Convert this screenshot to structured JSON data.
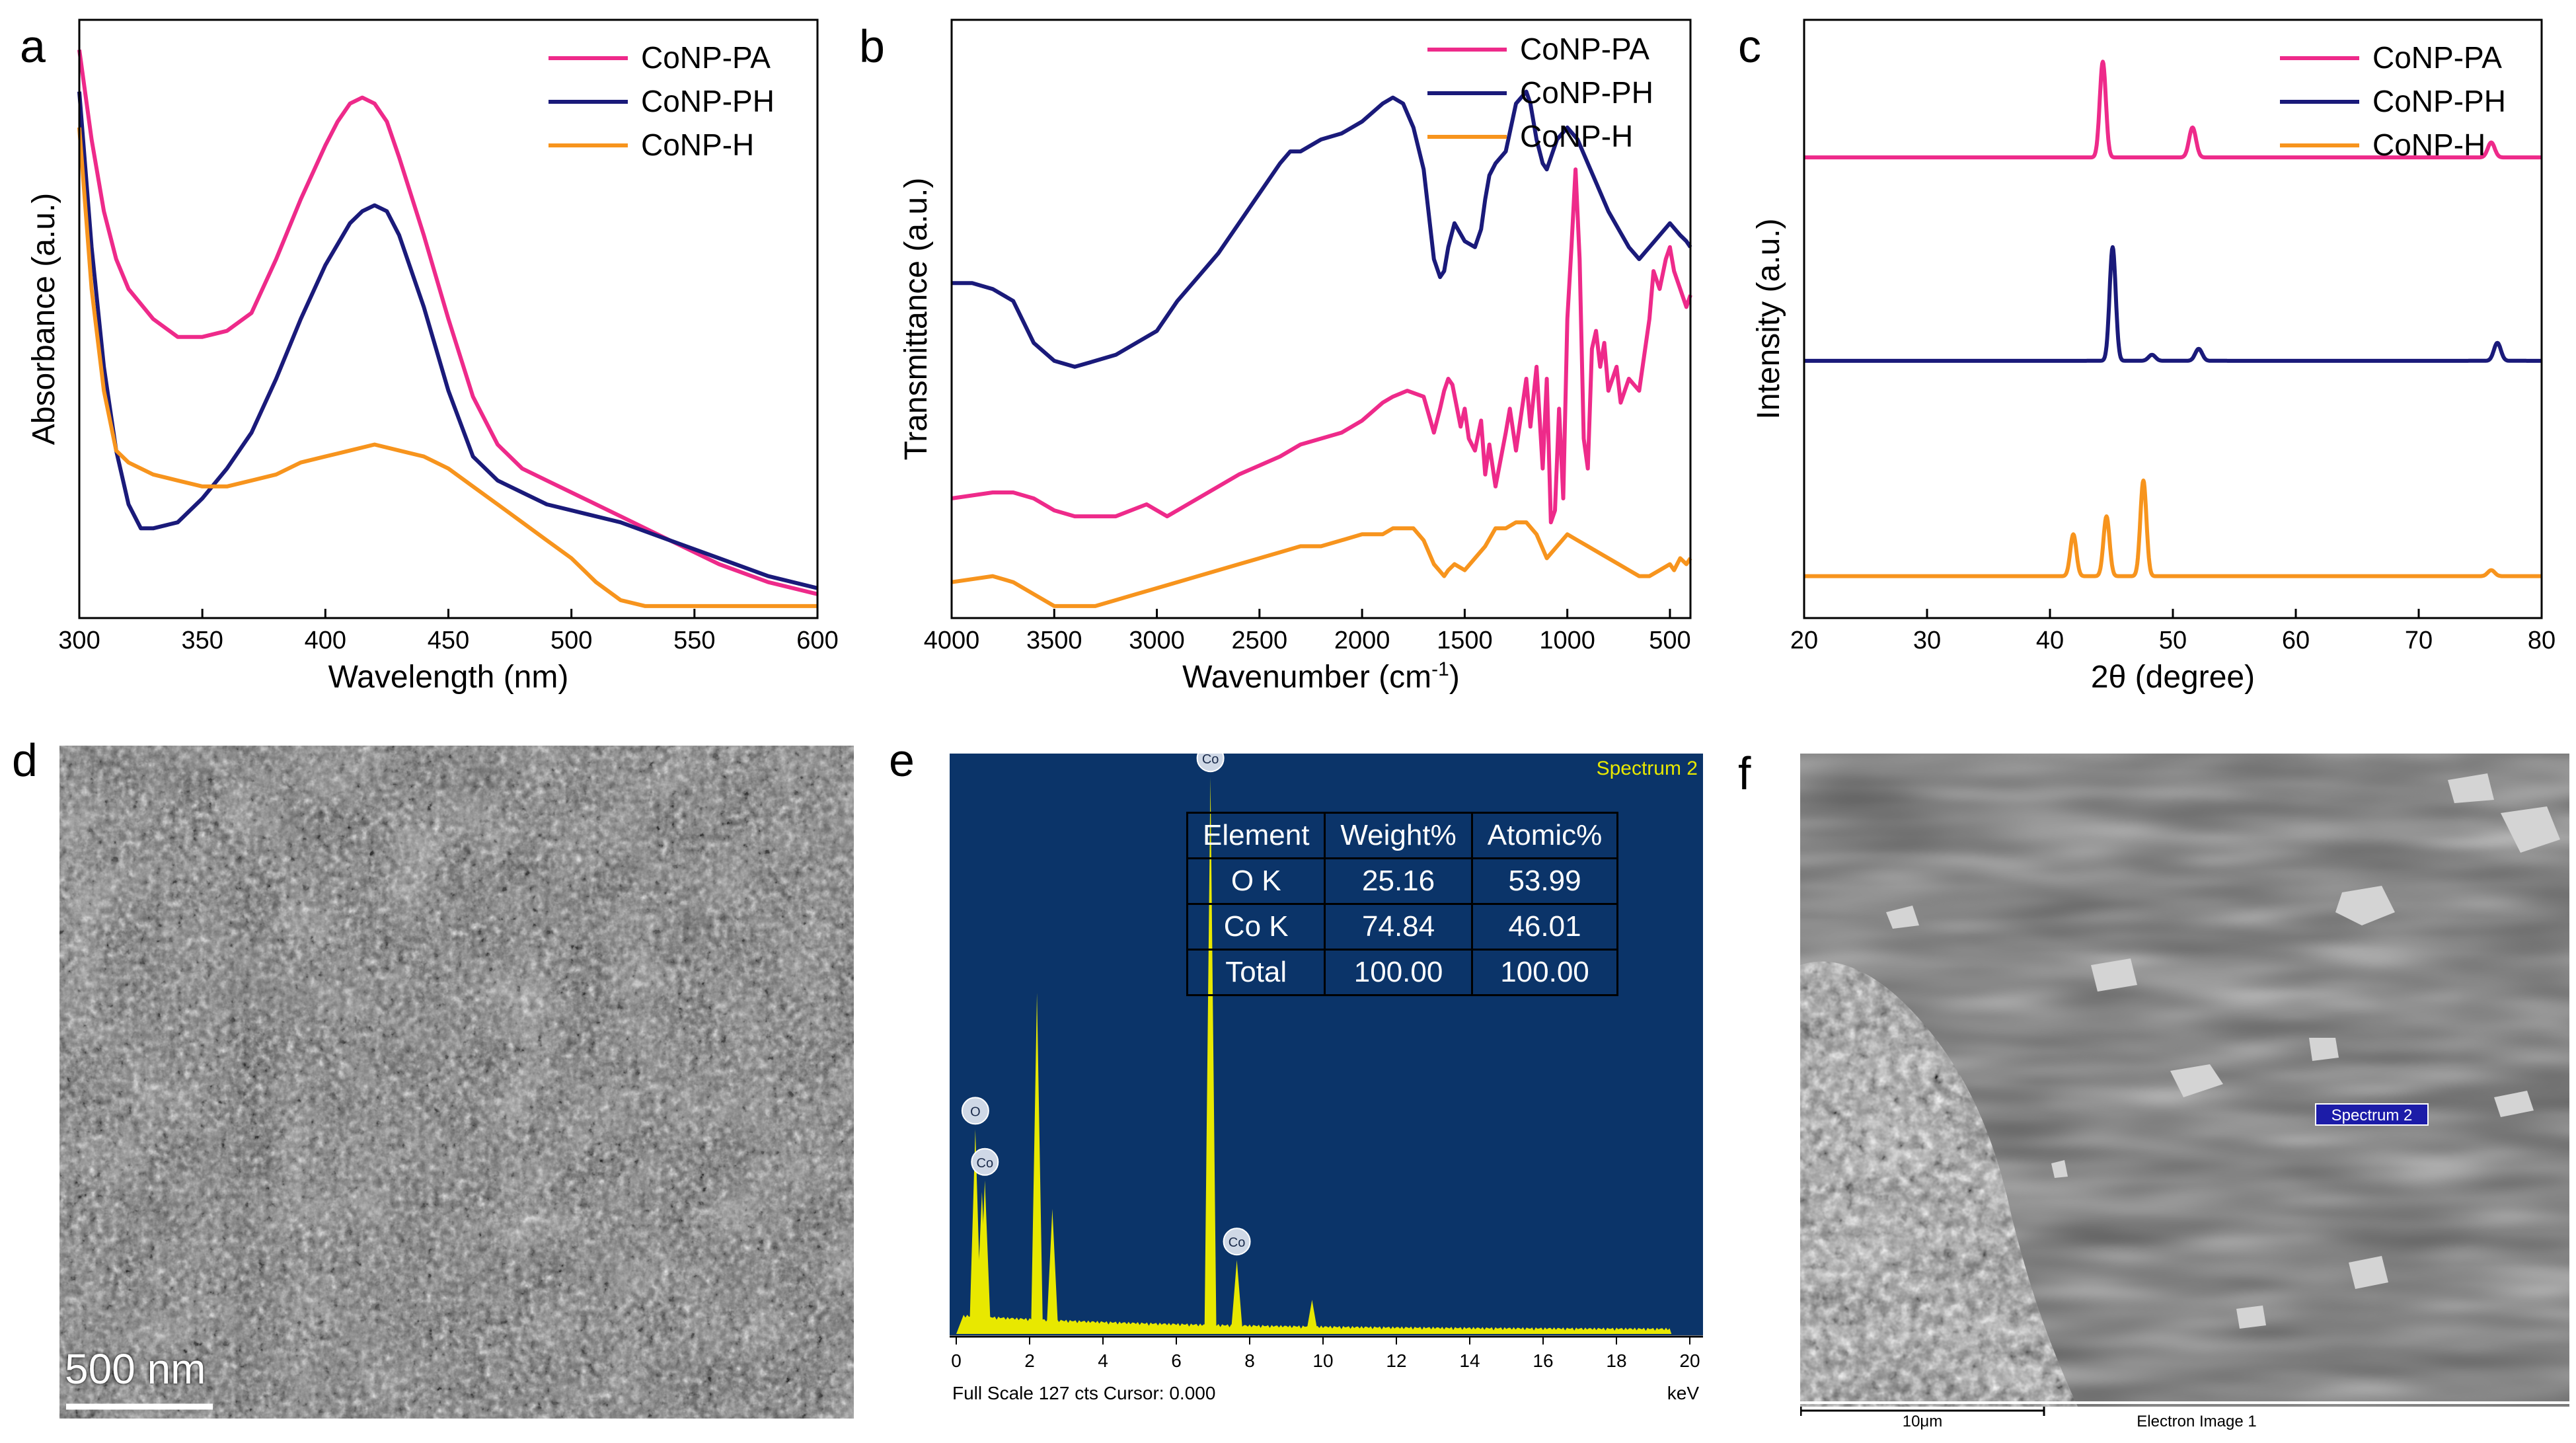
{
  "panels": {
    "a": "a",
    "b": "b",
    "c": "c",
    "d": "d",
    "e": "e",
    "f": "f"
  },
  "colors": {
    "pa": "#ee2a8a",
    "ph": "#1a1a7a",
    "h": "#f7941d",
    "eds_bg": "#0b3469",
    "eds_peak": "#e8e800"
  },
  "chart_data": [
    {
      "id": "a",
      "type": "line",
      "xlabel": "Wavelength (nm)",
      "ylabel": "Absorbance (a.u.)",
      "xlim": [
        300,
        600
      ],
      "ylim": [
        0,
        1
      ],
      "xticks": [
        300,
        350,
        400,
        450,
        500,
        550,
        600
      ],
      "yticks_shown": false,
      "legend_position": "top-right",
      "series": [
        {
          "name": "CoNP-PA",
          "color": "#ee2a8a",
          "x": [
            300,
            305,
            310,
            315,
            320,
            330,
            340,
            350,
            360,
            370,
            380,
            390,
            400,
            405,
            410,
            415,
            420,
            425,
            430,
            440,
            450,
            460,
            470,
            480,
            490,
            500,
            510,
            520,
            540,
            560,
            580,
            600
          ],
          "y": [
            0.95,
            0.8,
            0.68,
            0.6,
            0.55,
            0.5,
            0.47,
            0.47,
            0.48,
            0.51,
            0.6,
            0.7,
            0.79,
            0.83,
            0.86,
            0.87,
            0.86,
            0.83,
            0.77,
            0.64,
            0.5,
            0.37,
            0.29,
            0.25,
            0.23,
            0.21,
            0.19,
            0.17,
            0.13,
            0.09,
            0.06,
            0.04
          ]
        },
        {
          "name": "CoNP-PH",
          "color": "#1a1a7a",
          "x": [
            300,
            305,
            310,
            315,
            320,
            325,
            330,
            340,
            350,
            360,
            370,
            380,
            390,
            400,
            410,
            415,
            420,
            425,
            430,
            440,
            450,
            460,
            470,
            480,
            490,
            500,
            520,
            540,
            560,
            580,
            600
          ],
          "y": [
            0.88,
            0.62,
            0.42,
            0.28,
            0.19,
            0.15,
            0.15,
            0.16,
            0.2,
            0.25,
            0.31,
            0.4,
            0.5,
            0.59,
            0.66,
            0.68,
            0.69,
            0.68,
            0.64,
            0.52,
            0.38,
            0.27,
            0.23,
            0.21,
            0.19,
            0.18,
            0.16,
            0.13,
            0.1,
            0.07,
            0.05
          ]
        },
        {
          "name": "CoNP-H",
          "color": "#f7941d",
          "x": [
            300,
            305,
            310,
            315,
            320,
            330,
            340,
            350,
            360,
            370,
            380,
            390,
            400,
            410,
            420,
            430,
            440,
            450,
            460,
            470,
            480,
            490,
            500,
            510,
            520,
            530,
            550,
            570,
            600
          ],
          "y": [
            0.82,
            0.55,
            0.38,
            0.28,
            0.26,
            0.24,
            0.23,
            0.22,
            0.22,
            0.23,
            0.24,
            0.26,
            0.27,
            0.28,
            0.29,
            0.28,
            0.27,
            0.25,
            0.22,
            0.19,
            0.16,
            0.13,
            0.1,
            0.06,
            0.03,
            0.02,
            0.02,
            0.02,
            0.02
          ]
        }
      ]
    },
    {
      "id": "b",
      "type": "line",
      "xlabel": "Wavenumber (cm",
      "xlabel_sup": "-1",
      "xlabel_end": ")",
      "ylabel": "Transmittance (a.u.)",
      "xlim": [
        4000,
        400
      ],
      "ylim": [
        0,
        1
      ],
      "xticks": [
        4000,
        3500,
        3000,
        2500,
        2000,
        1500,
        1000,
        500
      ],
      "yticks_shown": false,
      "legend_position": "top-right",
      "series": [
        {
          "name": "CoNP-PA",
          "color": "#ee2a8a",
          "x": [
            4000,
            3800,
            3700,
            3600,
            3500,
            3400,
            3200,
            3050,
            3000,
            2950,
            2900,
            2800,
            2600,
            2400,
            2300,
            2200,
            2100,
            2000,
            1900,
            1850,
            1780,
            1700,
            1650,
            1620,
            1600,
            1580,
            1560,
            1520,
            1500,
            1480,
            1450,
            1420,
            1400,
            1380,
            1350,
            1300,
            1280,
            1250,
            1200,
            1180,
            1150,
            1120,
            1100,
            1080,
            1060,
            1040,
            1020,
            1000,
            980,
            960,
            940,
            920,
            900,
            880,
            860,
            840,
            820,
            800,
            780,
            760,
            740,
            700,
            650,
            600,
            580,
            550,
            520,
            500,
            480,
            450,
            420,
            400
          ],
          "y": [
            0.2,
            0.21,
            0.21,
            0.2,
            0.18,
            0.17,
            0.17,
            0.19,
            0.18,
            0.17,
            0.18,
            0.2,
            0.24,
            0.27,
            0.29,
            0.3,
            0.31,
            0.33,
            0.36,
            0.37,
            0.38,
            0.37,
            0.31,
            0.35,
            0.38,
            0.4,
            0.39,
            0.32,
            0.35,
            0.3,
            0.28,
            0.33,
            0.24,
            0.29,
            0.22,
            0.31,
            0.35,
            0.28,
            0.4,
            0.32,
            0.42,
            0.25,
            0.4,
            0.16,
            0.18,
            0.35,
            0.2,
            0.5,
            0.62,
            0.75,
            0.6,
            0.3,
            0.25,
            0.45,
            0.48,
            0.42,
            0.46,
            0.38,
            0.4,
            0.42,
            0.36,
            0.4,
            0.38,
            0.5,
            0.58,
            0.55,
            0.6,
            0.62,
            0.58,
            0.55,
            0.52,
            0.54
          ]
        },
        {
          "name": "CoNP-PH",
          "color": "#1a1a7a",
          "x": [
            4000,
            3900,
            3800,
            3700,
            3600,
            3500,
            3400,
            3300,
            3200,
            3100,
            3000,
            2900,
            2800,
            2700,
            2600,
            2500,
            2400,
            2350,
            2300,
            2200,
            2100,
            2000,
            1900,
            1850,
            1800,
            1750,
            1700,
            1650,
            1620,
            1600,
            1580,
            1550,
            1500,
            1450,
            1420,
            1400,
            1380,
            1350,
            1300,
            1250,
            1200,
            1180,
            1150,
            1120,
            1100,
            1050,
            1000,
            950,
            900,
            850,
            800,
            750,
            700,
            650,
            600,
            550,
            500,
            450,
            420,
            400
          ],
          "y": [
            0.56,
            0.56,
            0.55,
            0.53,
            0.46,
            0.43,
            0.42,
            0.43,
            0.44,
            0.46,
            0.48,
            0.53,
            0.57,
            0.61,
            0.66,
            0.71,
            0.76,
            0.78,
            0.78,
            0.8,
            0.81,
            0.83,
            0.86,
            0.87,
            0.86,
            0.82,
            0.75,
            0.6,
            0.57,
            0.58,
            0.62,
            0.66,
            0.63,
            0.62,
            0.65,
            0.7,
            0.74,
            0.76,
            0.78,
            0.86,
            0.88,
            0.86,
            0.8,
            0.76,
            0.75,
            0.8,
            0.82,
            0.8,
            0.76,
            0.72,
            0.68,
            0.65,
            0.62,
            0.6,
            0.62,
            0.64,
            0.66,
            0.64,
            0.63,
            0.62
          ]
        },
        {
          "name": "CoNP-H",
          "color": "#f7941d",
          "x": [
            4000,
            3800,
            3700,
            3600,
            3500,
            3400,
            3300,
            3200,
            3100,
            3000,
            2900,
            2800,
            2600,
            2400,
            2300,
            2200,
            2100,
            2000,
            1900,
            1850,
            1800,
            1750,
            1700,
            1650,
            1600,
            1580,
            1550,
            1500,
            1450,
            1400,
            1350,
            1300,
            1250,
            1200,
            1150,
            1100,
            1050,
            1000,
            950,
            900,
            850,
            800,
            750,
            700,
            650,
            600,
            550,
            500,
            480,
            450,
            420,
            400
          ],
          "y": [
            0.06,
            0.07,
            0.06,
            0.04,
            0.02,
            0.02,
            0.02,
            0.03,
            0.04,
            0.05,
            0.06,
            0.07,
            0.09,
            0.11,
            0.12,
            0.12,
            0.13,
            0.14,
            0.14,
            0.15,
            0.15,
            0.15,
            0.13,
            0.09,
            0.07,
            0.08,
            0.09,
            0.08,
            0.1,
            0.12,
            0.15,
            0.15,
            0.16,
            0.16,
            0.14,
            0.1,
            0.12,
            0.14,
            0.13,
            0.12,
            0.11,
            0.1,
            0.09,
            0.08,
            0.07,
            0.07,
            0.08,
            0.09,
            0.08,
            0.1,
            0.09,
            0.1
          ]
        }
      ]
    },
    {
      "id": "c",
      "type": "line",
      "xlabel": "2θ (degree)",
      "ylabel": "Intensity (a.u.)",
      "xlim": [
        20,
        80
      ],
      "ylim": [
        0,
        1
      ],
      "xticks": [
        20,
        30,
        40,
        50,
        60,
        70,
        80
      ],
      "yticks_shown": false,
      "legend_position": "top-right",
      "series": [
        {
          "name": "CoNP-PA",
          "color": "#ee2a8a",
          "baseline": 0.77,
          "peaks": [
            {
              "x": 44.3,
              "h": 0.16,
              "w": 0.35
            },
            {
              "x": 51.6,
              "h": 0.05,
              "w": 0.4
            },
            {
              "x": 75.9,
              "h": 0.025,
              "w": 0.4
            }
          ]
        },
        {
          "name": "CoNP-PH",
          "color": "#1a1a7a",
          "baseline": 0.43,
          "peaks": [
            {
              "x": 45.1,
              "h": 0.19,
              "w": 0.35
            },
            {
              "x": 48.3,
              "h": 0.01,
              "w": 0.4
            },
            {
              "x": 52.1,
              "h": 0.02,
              "w": 0.4
            },
            {
              "x": 76.4,
              "h": 0.03,
              "w": 0.4
            }
          ]
        },
        {
          "name": "CoNP-H",
          "color": "#f7941d",
          "baseline": 0.07,
          "peaks": [
            {
              "x": 41.9,
              "h": 0.07,
              "w": 0.35
            },
            {
              "x": 44.6,
              "h": 0.1,
              "w": 0.35
            },
            {
              "x": 47.6,
              "h": 0.16,
              "w": 0.35
            },
            {
              "x": 75.9,
              "h": 0.01,
              "w": 0.4
            }
          ]
        }
      ]
    },
    {
      "id": "e",
      "type": "bar",
      "title": "Spectrum 2",
      "xlabel": "keV",
      "xlim": [
        0,
        20
      ],
      "xticks": [
        0,
        2,
        4,
        6,
        8,
        10,
        12,
        14,
        16,
        18,
        20
      ],
      "footer": "Full Scale 127 cts Cursor: 0.000",
      "peaks": [
        {
          "x": 0.52,
          "h": 0.36,
          "label": "O"
        },
        {
          "x": 0.7,
          "h": 0.25,
          "label": ""
        },
        {
          "x": 0.78,
          "h": 0.27,
          "label": "Co"
        },
        {
          "x": 2.2,
          "h": 0.6,
          "label": ""
        },
        {
          "x": 2.62,
          "h": 0.22,
          "label": ""
        },
        {
          "x": 6.93,
          "h": 0.98,
          "label": "Co"
        },
        {
          "x": 7.65,
          "h": 0.13,
          "label": "Co"
        },
        {
          "x": 9.7,
          "h": 0.06,
          "label": ""
        }
      ],
      "table": {
        "headers": [
          "Element",
          "Weight%",
          "Atomic%"
        ],
        "rows": [
          [
            "O K",
            "25.16",
            "53.99"
          ],
          [
            "Co K",
            "74.84",
            "46.01"
          ],
          [
            "Total",
            "100.00",
            "100.00"
          ]
        ]
      }
    }
  ],
  "sem_d": {
    "scale_bar": "500 nm"
  },
  "sem_f": {
    "scale_bar": "10μm",
    "caption": "Electron Image 1",
    "marker": "Spectrum 2"
  }
}
